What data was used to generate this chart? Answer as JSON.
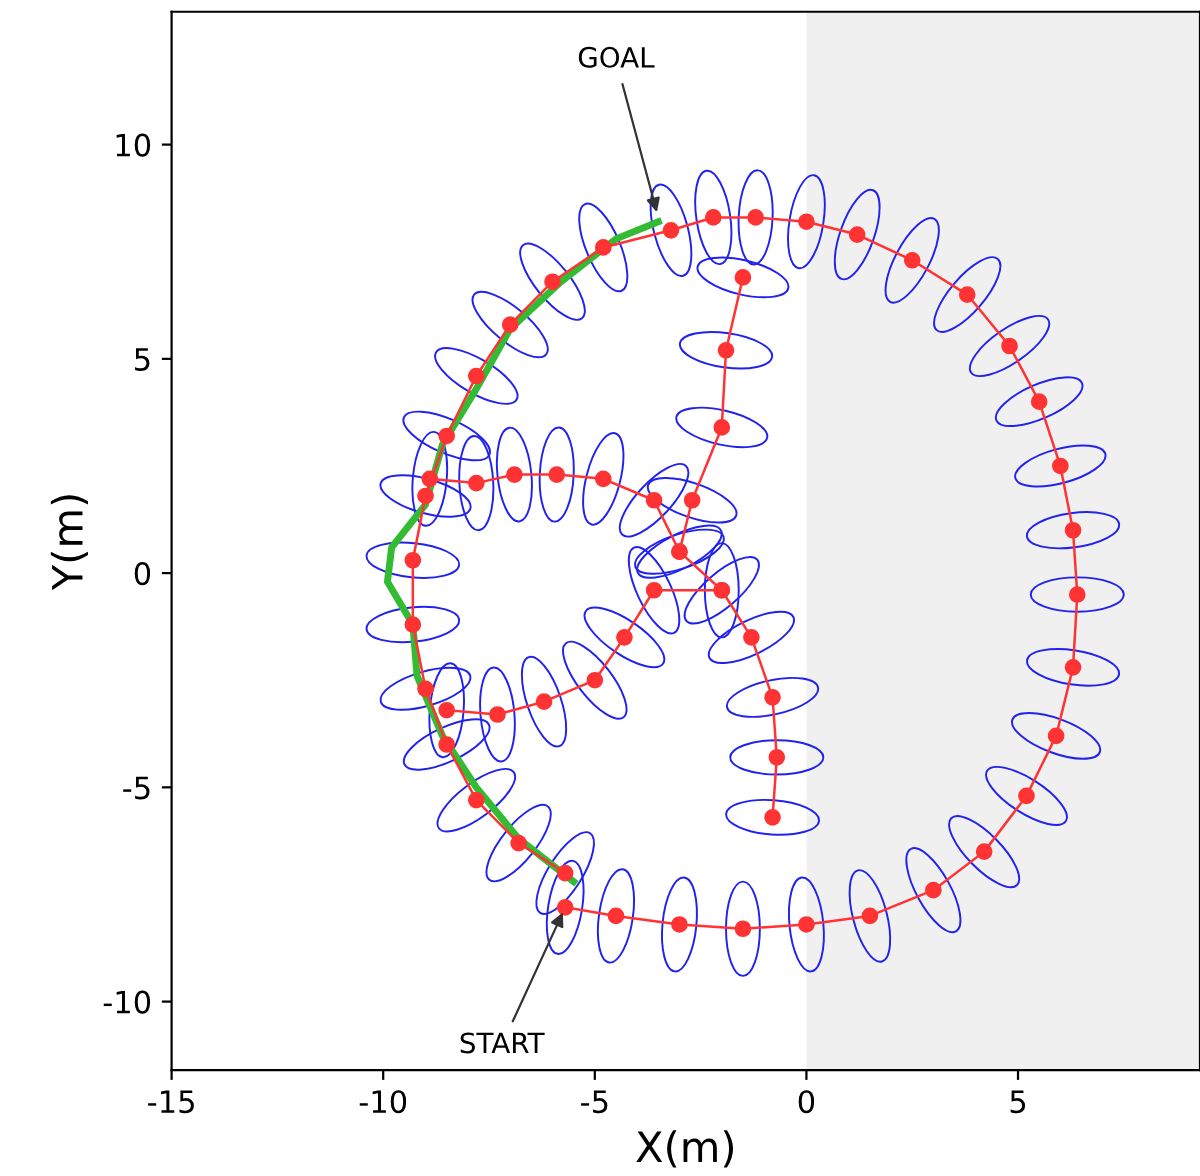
{
  "chart_data": {
    "type": "line",
    "xlabel": "X(m)",
    "ylabel": "Y(m)",
    "xlim": [
      -15,
      9.3
    ],
    "ylim": [
      -11.6,
      13.1
    ],
    "xticks": [
      -15,
      -10,
      -5,
      0,
      5
    ],
    "yticks": [
      -10,
      -5,
      0,
      5,
      10
    ],
    "grid": false,
    "bands": [
      {
        "axis": "x",
        "from": 0,
        "to": 9.3,
        "color": "#f0f0f0"
      }
    ],
    "series": [
      {
        "color": "#ff3333",
        "marker": "circle",
        "x": [
          -5.7,
          -4.5,
          -3,
          -1.5,
          0,
          1.5,
          3,
          4.2,
          5.2,
          5.9,
          6.3,
          6.4,
          6.3,
          6.0,
          5.5,
          4.8,
          3.8,
          2.5,
          1.2,
          0,
          -1.2,
          -2.2,
          -3.2,
          -4.8,
          -6,
          -7,
          -7.8,
          -8.5,
          -9,
          -9.3,
          -9.3,
          -9,
          -8.5,
          -7.8,
          -6.8,
          -5.7
        ],
        "values": [
          -7.8,
          -8.0,
          -8.2,
          -8.3,
          -8.2,
          -8.0,
          -7.4,
          -6.5,
          -5.2,
          -3.8,
          -2.2,
          -0.5,
          1.0,
          2.5,
          4.0,
          5.3,
          6.5,
          7.3,
          7.9,
          8.2,
          8.3,
          8.3,
          8.0,
          7.6,
          6.8,
          5.8,
          4.6,
          3.2,
          1.8,
          0.3,
          -1.2,
          -2.7,
          -4.0,
          -5.3,
          -6.3,
          -7.0
        ]
      },
      {
        "color": "#ff3333",
        "marker": "circle",
        "x": [
          -1.5,
          -1.9,
          -2.0,
          -2.7,
          -3.0,
          -2.0,
          -1.3,
          -0.8,
          -0.7,
          -0.8
        ],
        "values": [
          6.9,
          5.2,
          3.4,
          1.7,
          0.5,
          -0.4,
          -1.5,
          -2.9,
          -4.3,
          -5.7
        ]
      },
      {
        "color": "#ff3333",
        "marker": "circle",
        "x": [
          -3.0,
          -3.6,
          -4.8,
          -5.9,
          -6.9,
          -7.8,
          -8.9
        ],
        "values": [
          0.5,
          1.7,
          2.2,
          2.3,
          2.3,
          2.1,
          2.2
        ]
      },
      {
        "color": "#ff3333",
        "marker": "circle",
        "x": [
          -8.5,
          -7.3,
          -6.2,
          -5.0,
          -4.3,
          -3.6,
          -2.0
        ],
        "values": [
          -3.2,
          -3.3,
          -3.0,
          -2.5,
          -1.5,
          -0.4,
          -0.4
        ]
      },
      {
        "color": "#33bb33",
        "marker": "none",
        "x": [
          -3.5,
          -4.5,
          -5.8,
          -7,
          -7.8,
          -8.6,
          -9.0,
          -9.8,
          -9.9,
          -9.3,
          -9.2,
          -8.6,
          -7.8,
          -6.8,
          -5.5
        ],
        "values": [
          8.2,
          7.8,
          6.8,
          5.7,
          4.3,
          3.0,
          1.6,
          0.6,
          -0.2,
          -1.2,
          -2.4,
          -3.8,
          -5.0,
          -6.2,
          -7.2
        ]
      }
    ],
    "annotations": [
      {
        "text": "GOAL",
        "x": -3.5,
        "y": 8.3
      },
      {
        "text": "START",
        "x": -5.7,
        "y": -7.8
      }
    ]
  }
}
